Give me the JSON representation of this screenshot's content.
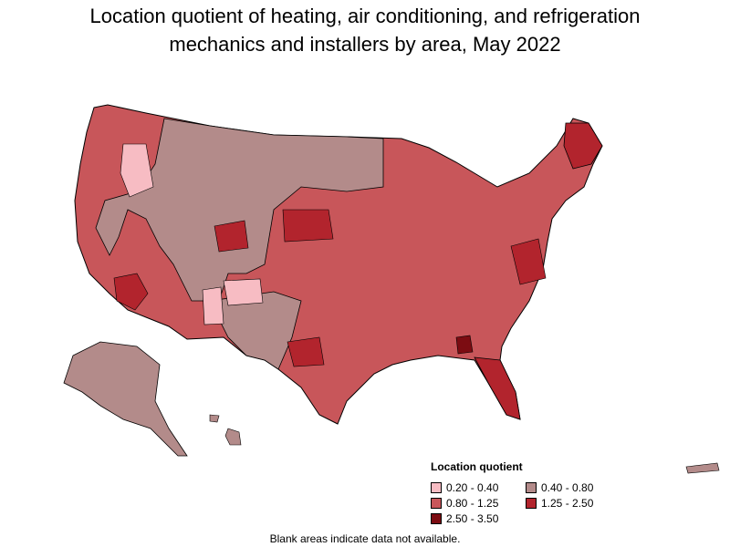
{
  "title_line1": "Location quotient of heating, air conditioning, and refrigeration",
  "title_line2": "mechanics and installers by area, May 2022",
  "legend": {
    "title": "Location quotient",
    "items": [
      {
        "label": "0.20 - 0.40",
        "color": "#f7bcc3"
      },
      {
        "label": "0.40 - 0.80",
        "color": "#b38b8a"
      },
      {
        "label": "0.80 - 1.25",
        "color": "#c8565a"
      },
      {
        "label": "1.25 - 2.50",
        "color": "#b2242d"
      },
      {
        "label": "2.50 - 3.50",
        "color": "#7c0c12"
      }
    ]
  },
  "footnote": "Blank areas indicate data not available."
}
